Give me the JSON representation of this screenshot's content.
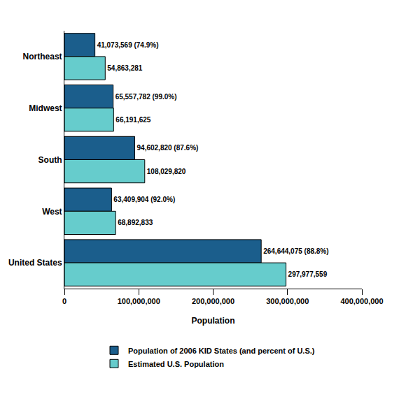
{
  "chart_data": {
    "type": "bar",
    "orientation": "horizontal",
    "x_label": "Population",
    "categories": [
      "Northeast",
      "Midwest",
      "South",
      "West",
      "United States"
    ],
    "series": [
      {
        "name": "Population of 2006 KID States (and percent of U.S.)",
        "color": "#1b5e8c",
        "values": [
          41073569,
          65557782,
          94602820,
          63409904,
          264644075
        ],
        "value_labels": [
          "41,073,569 (74.9%)",
          "65,557,782 (99.0%)",
          "94,602,820 (87.6%)",
          "63,409,904 (92.0%)",
          "264,644,075 (88.8%)"
        ]
      },
      {
        "name": "Estimated U.S. Population",
        "color": "#66cccc",
        "values": [
          54863281,
          66191625,
          108029820,
          68892833,
          297977559
        ],
        "value_labels": [
          "54,863,281",
          "66,191,625",
          "108,029,820",
          "68,892,833",
          "297,977,559"
        ]
      }
    ],
    "xlim": [
      0,
      400000000
    ],
    "xticks": [
      0,
      {
        "value": 100000000,
        "label": "100,000,000"
      },
      {
        "value": 200000000,
        "label": "200,000,000"
      },
      {
        "value": 300000000,
        "label": "300,000,000"
      },
      {
        "value": 400000000,
        "label": "400,000,000"
      }
    ],
    "grid": false,
    "data_labels": true,
    "legend": "bottom"
  }
}
